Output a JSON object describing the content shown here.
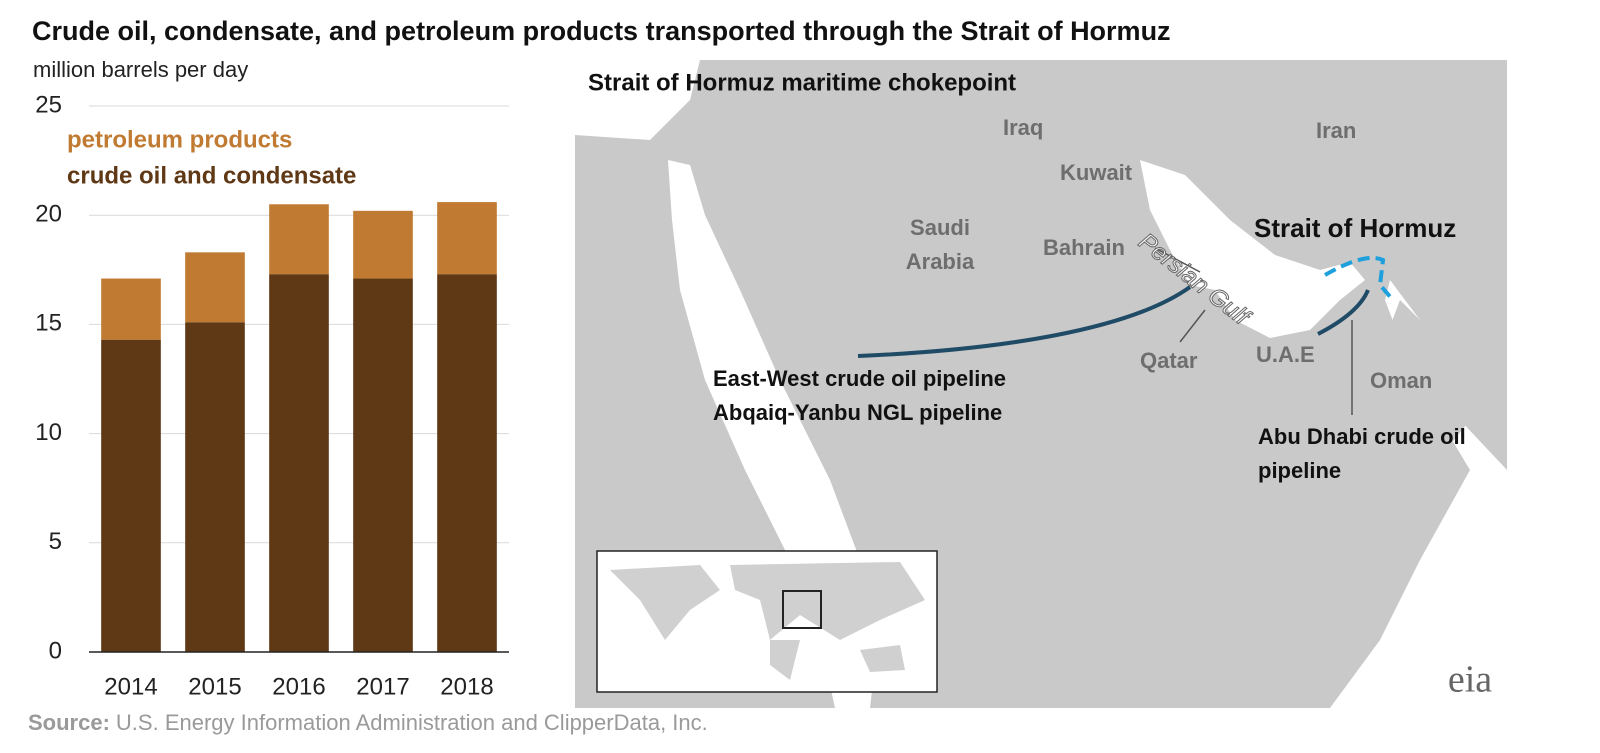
{
  "chart_data": {
    "type": "stacked-bar",
    "title": "Crude oil, condensate, and petroleum products transported through the Strait of Hormuz",
    "subtitle": "million barrels per day",
    "categories": [
      "2014",
      "2015",
      "2016",
      "2017",
      "2018"
    ],
    "series": [
      {
        "name": "crude oil and condensate",
        "color": "#5f3815",
        "values": [
          14.3,
          15.1,
          17.3,
          17.1,
          17.3
        ]
      },
      {
        "name": "petroleum products",
        "color": "#c07a32",
        "values": [
          2.8,
          3.2,
          3.2,
          3.1,
          3.3
        ]
      }
    ],
    "ylim": [
      0,
      25
    ],
    "yticks": [
      0,
      5,
      10,
      15,
      20,
      25
    ],
    "grid": true
  },
  "map": {
    "title": "Strait of Hormuz maritime chokepoint",
    "labels": [
      "Iraq",
      "Iran",
      "Kuwait",
      "Saudi Arabia",
      "Bahrain",
      "Persian Gulf",
      "Qatar",
      "U.A.E",
      "Oman",
      "Strait of Hormuz"
    ],
    "pipelines": [
      "East-West crude oil pipeline",
      "Abqaiq-Yanbu NGL pipeline",
      "Abu Dhabi crude oil pipeline"
    ]
  },
  "source": {
    "label": "Source:",
    "text": "U.S. Energy Information Administration and ClipperData, Inc."
  },
  "logo": "eia"
}
